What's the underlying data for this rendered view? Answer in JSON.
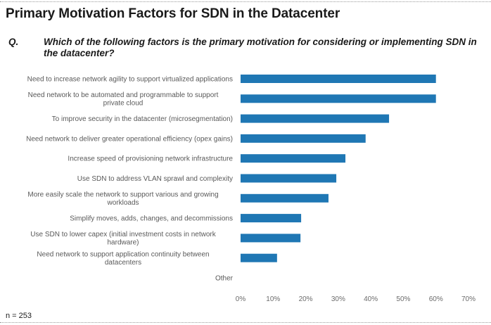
{
  "header": {
    "title": "Primary Motivation Factors for SDN in the Datacenter",
    "question_label": "Q.",
    "question_text": "Which of the following factors is the primary motivation for considering or implementing SDN in the datacenter?"
  },
  "footer": {
    "sample_note": "n = 253"
  },
  "colors": {
    "bar": "#1f77b4",
    "axis_text": "#6b6b6b",
    "category_text": "#595959"
  },
  "chart_data": {
    "type": "bar",
    "orientation": "horizontal",
    "title": "Primary Motivation Factors for SDN in the Datacenter",
    "xlabel": "",
    "ylabel": "",
    "xlim": [
      0,
      70
    ],
    "x_ticks": [
      0,
      10,
      20,
      30,
      40,
      50,
      60,
      70
    ],
    "x_tick_labels": [
      "0%",
      "10%",
      "20%",
      "30%",
      "40%",
      "50%",
      "60%",
      "70%"
    ],
    "grid": false,
    "categories": [
      [
        "Need to increase network agility to support virtualized applications"
      ],
      [
        "Need network to be automated and programmable to support",
        "private cloud"
      ],
      [
        "To improve security in the datacenter (microsegmentation)"
      ],
      [
        "Need network to deliver greater operational efficiency (opex gains)"
      ],
      [
        "Increase speed of provisioning network infrastructure"
      ],
      [
        "Use SDN to address VLAN sprawl and complexity"
      ],
      [
        "More easily scale the network to support various and growing",
        "workloads"
      ],
      [
        "Simplify moves, adds, changes, and decommissions"
      ],
      [
        "Use SDN to lower capex (initial investment costs in network",
        "hardware)"
      ],
      [
        "Need network to support application continuity between",
        "datacenters"
      ],
      [
        "Other"
      ]
    ],
    "values": [
      60,
      60,
      45.6,
      38.4,
      32.2,
      29.4,
      27.0,
      18.6,
      18.4,
      11.2,
      0
    ]
  }
}
